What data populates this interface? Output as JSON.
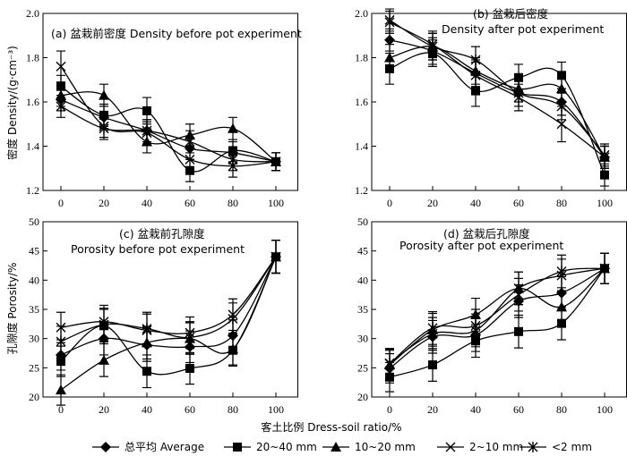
{
  "figure": {
    "x_axis_title": "客土比例 Dress-soil ratio/%",
    "y_axis_title_density": "密度 Density/(g·cm⁻³)",
    "y_axis_title_porosity": "孔隙度 Porosity/%"
  },
  "legend": [
    {
      "label": "总平均 Average",
      "marker": "diamond"
    },
    {
      "label": "20~40 mm",
      "marker": "square"
    },
    {
      "label": "10~20 mm",
      "marker": "triangle"
    },
    {
      "label": "2~10 mm",
      "marker": "x"
    },
    {
      "label": "<2 mm",
      "marker": "asterisk"
    }
  ],
  "chart_data": [
    {
      "id": "a",
      "type": "line",
      "title_line1": "(a) 盆栽前密度 Density before pot experiment",
      "title_line2": "",
      "x": [
        0,
        20,
        40,
        60,
        80,
        100
      ],
      "xticks": [
        "0",
        "20",
        "40",
        "60",
        "80",
        "100"
      ],
      "ylim": [
        1.2,
        2.0
      ],
      "yticks": [
        "1.2",
        "1.4",
        "1.6",
        "1.8",
        "2.0"
      ],
      "ytick_values": [
        1.2,
        1.4,
        1.6,
        1.8,
        2.0
      ],
      "series": [
        {
          "name": "总平均 Average",
          "marker": "diamond",
          "values": [
            1.61,
            1.53,
            1.47,
            1.39,
            1.37,
            1.33
          ],
          "err": [
            0.05,
            0.05,
            0.05,
            0.05,
            0.05,
            0.04
          ]
        },
        {
          "name": "20~40 mm",
          "marker": "square",
          "values": [
            1.67,
            1.54,
            1.56,
            1.29,
            1.38,
            1.33
          ],
          "err": [
            0.05,
            0.05,
            0.06,
            0.05,
            0.05,
            0.04
          ]
        },
        {
          "name": "10~20 mm",
          "marker": "triangle",
          "values": [
            1.63,
            1.63,
            1.42,
            1.45,
            1.48,
            1.33
          ],
          "err": [
            0.05,
            0.05,
            0.05,
            0.05,
            0.05,
            0.04
          ]
        },
        {
          "name": "2~10 mm",
          "marker": "x",
          "values": [
            1.76,
            1.49,
            1.46,
            1.34,
            1.31,
            1.33
          ],
          "err": [
            0.07,
            0.05,
            0.05,
            0.05,
            0.05,
            0.04
          ]
        },
        {
          "name": "<2 mm",
          "marker": "asterisk",
          "values": [
            1.58,
            1.48,
            1.47,
            1.42,
            1.34,
            1.33
          ],
          "err": [
            0.05,
            0.05,
            0.05,
            0.05,
            0.05,
            0.04
          ]
        }
      ]
    },
    {
      "id": "b",
      "type": "line",
      "title_line1": "(b) 盆栽后密度",
      "title_line2": "Density after pot experiment",
      "x": [
        0,
        20,
        40,
        60,
        80,
        100
      ],
      "xticks": [
        "0",
        "20",
        "40",
        "60",
        "80",
        "100"
      ],
      "ylim": [
        1.2,
        2.0
      ],
      "yticks": [
        "1.2",
        "1.4",
        "1.6",
        "1.8",
        "2.0"
      ],
      "ytick_values": [
        1.2,
        1.4,
        1.6,
        1.8,
        2.0
      ],
      "series": [
        {
          "name": "总平均 Average",
          "marker": "diamond",
          "values": [
            1.88,
            1.83,
            1.73,
            1.64,
            1.6,
            1.35
          ],
          "err": [
            0.05,
            0.06,
            0.06,
            0.06,
            0.06,
            0.05
          ]
        },
        {
          "name": "20~40 mm",
          "marker": "square",
          "values": [
            1.75,
            1.82,
            1.65,
            1.71,
            1.72,
            1.27
          ],
          "err": [
            0.07,
            0.06,
            0.07,
            0.06,
            0.06,
            0.05
          ]
        },
        {
          "name": "10~20 mm",
          "marker": "triangle",
          "values": [
            1.8,
            1.85,
            1.74,
            1.66,
            1.66,
            1.35
          ],
          "err": [
            0.06,
            0.06,
            0.06,
            0.06,
            0.06,
            0.05
          ]
        },
        {
          "name": "2~10 mm",
          "marker": "x",
          "values": [
            1.96,
            1.86,
            1.72,
            1.62,
            1.5,
            1.35
          ],
          "err": [
            0.05,
            0.06,
            0.06,
            0.06,
            0.08,
            0.05
          ]
        },
        {
          "name": "<2 mm",
          "marker": "asterisk",
          "values": [
            1.97,
            1.85,
            1.79,
            1.64,
            1.58,
            1.36
          ],
          "err": [
            0.05,
            0.06,
            0.06,
            0.06,
            0.06,
            0.05
          ]
        }
      ]
    },
    {
      "id": "c",
      "type": "line",
      "title_line1": "(c) 盆栽前孔隙度",
      "title_line2": "Porosity before pot experiment",
      "x": [
        0,
        20,
        40,
        60,
        80,
        100
      ],
      "xticks": [
        "0",
        "20",
        "40",
        "60",
        "80",
        "100"
      ],
      "ylim": [
        20,
        50
      ],
      "yticks": [
        "20",
        "25",
        "30",
        "35",
        "40",
        "45",
        "50"
      ],
      "ytick_values": [
        20,
        25,
        30,
        35,
        40,
        45,
        50
      ],
      "series": [
        {
          "name": "总平均 Average",
          "marker": "diamond",
          "values": [
            27.2,
            30.0,
            28.9,
            28.6,
            30.5,
            44.0
          ],
          "err": [
            2.6,
            2.8,
            2.8,
            2.7,
            2.7,
            2.8
          ]
        },
        {
          "name": "20~40 mm",
          "marker": "square",
          "values": [
            26.1,
            32.2,
            24.4,
            24.9,
            28.0,
            44.0
          ],
          "err": [
            2.6,
            2.8,
            2.8,
            2.7,
            2.7,
            2.8
          ]
        },
        {
          "name": "10~20 mm",
          "marker": "triangle",
          "values": [
            21.2,
            26.3,
            29.3,
            30.0,
            28.2,
            44.0
          ],
          "err": [
            2.6,
            2.8,
            2.8,
            2.7,
            2.7,
            2.8
          ]
        },
        {
          "name": "2~10 mm",
          "marker": "x",
          "values": [
            31.9,
            32.9,
            31.4,
            31.0,
            34.1,
            44.0
          ],
          "err": [
            2.6,
            2.8,
            2.8,
            2.7,
            2.7,
            2.8
          ]
        },
        {
          "name": "<2 mm",
          "marker": "asterisk",
          "values": [
            29.5,
            32.4,
            31.7,
            30.2,
            33.4,
            44.0
          ],
          "err": [
            2.6,
            2.8,
            2.8,
            2.7,
            2.7,
            2.8
          ]
        }
      ]
    },
    {
      "id": "d",
      "type": "line",
      "title_line1": "(d) 盆栽后孔隙度",
      "title_line2": "Porosity after pot experiment",
      "x": [
        0,
        20,
        40,
        60,
        80,
        100
      ],
      "xticks": [
        "0",
        "20",
        "40",
        "60",
        "80",
        "100"
      ],
      "ylim": [
        20,
        50
      ],
      "yticks": [
        "20",
        "25",
        "30",
        "35",
        "40",
        "45",
        "50"
      ],
      "ytick_values": [
        20,
        25,
        30,
        35,
        40,
        45,
        50
      ],
      "series": [
        {
          "name": "总平均 Average",
          "marker": "diamond",
          "values": [
            24.9,
            30.3,
            30.6,
            36.4,
            37.8,
            42.0
          ],
          "err": [
            2.5,
            2.8,
            2.8,
            2.8,
            2.8,
            2.6
          ]
        },
        {
          "name": "20~40 mm",
          "marker": "square",
          "values": [
            23.4,
            25.5,
            29.6,
            31.2,
            32.6,
            42.0
          ],
          "err": [
            2.5,
            2.8,
            2.8,
            2.8,
            2.8,
            2.6
          ]
        },
        {
          "name": "10~20 mm",
          "marker": "triangle",
          "values": [
            25.5,
            31.5,
            34.1,
            38.6,
            35.4,
            42.0
          ],
          "err": [
            2.5,
            2.8,
            2.8,
            2.8,
            2.8,
            2.6
          ]
        },
        {
          "name": "2~10 mm",
          "marker": "x",
          "values": [
            25.8,
            30.8,
            31.4,
            38.6,
            40.8,
            42.0
          ],
          "err": [
            2.5,
            2.8,
            2.8,
            2.8,
            2.8,
            2.6
          ]
        },
        {
          "name": "<2 mm",
          "marker": "asterisk",
          "values": [
            25.7,
            31.8,
            32.2,
            37.5,
            41.5,
            42.0
          ],
          "err": [
            2.5,
            2.8,
            2.8,
            2.8,
            2.8,
            2.6
          ]
        }
      ]
    }
  ]
}
